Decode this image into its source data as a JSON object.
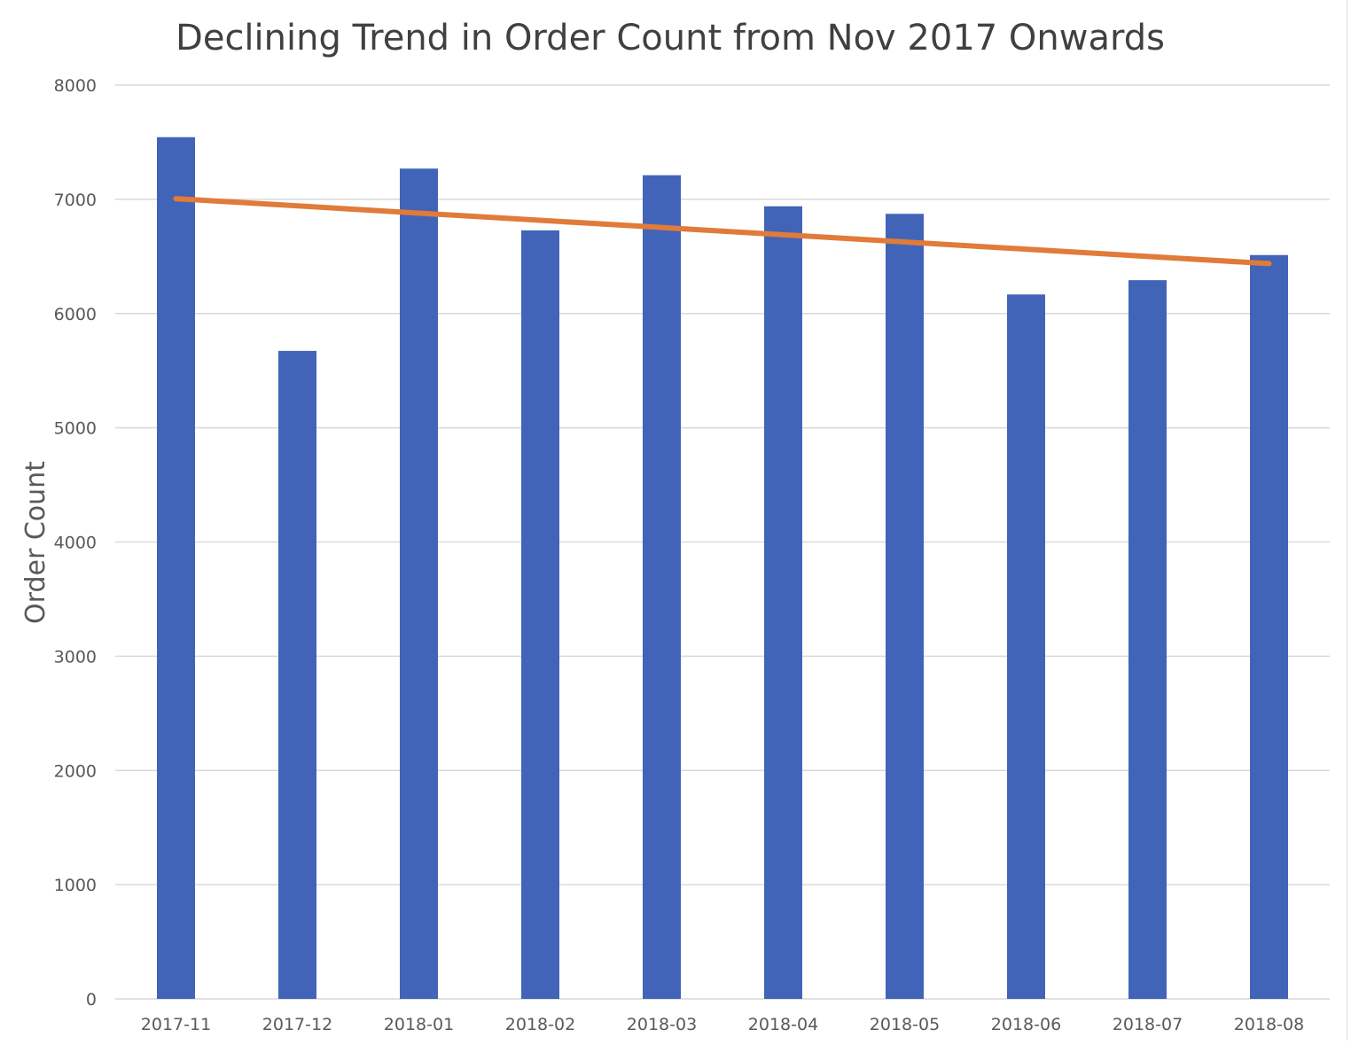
{
  "chart_data": {
    "type": "bar",
    "title": "Declining Trend in Order Count from Nov 2017 Onwards",
    "xlabel": "",
    "ylabel": "Order Count",
    "categories": [
      "2017-11",
      "2017-12",
      "2018-01",
      "2018-02",
      "2018-03",
      "2018-04",
      "2018-05",
      "2018-06",
      "2018-07",
      "2018-08"
    ],
    "values": [
      7544,
      5673,
      7269,
      6728,
      7211,
      6939,
      6873,
      6167,
      6292,
      6512
    ],
    "ylim": [
      0,
      8000
    ],
    "yticks": [
      0,
      1000,
      2000,
      3000,
      4000,
      5000,
      6000,
      7000,
      8000
    ],
    "grid": true,
    "legend": "none",
    "trendline": {
      "type": "linear",
      "start": 7006,
      "end": 6437
    },
    "colors": {
      "bar": "#4264b8",
      "trend": "#e07b39",
      "grid": "#d9d9d9",
      "text": "#595959",
      "title": "#404040"
    }
  }
}
